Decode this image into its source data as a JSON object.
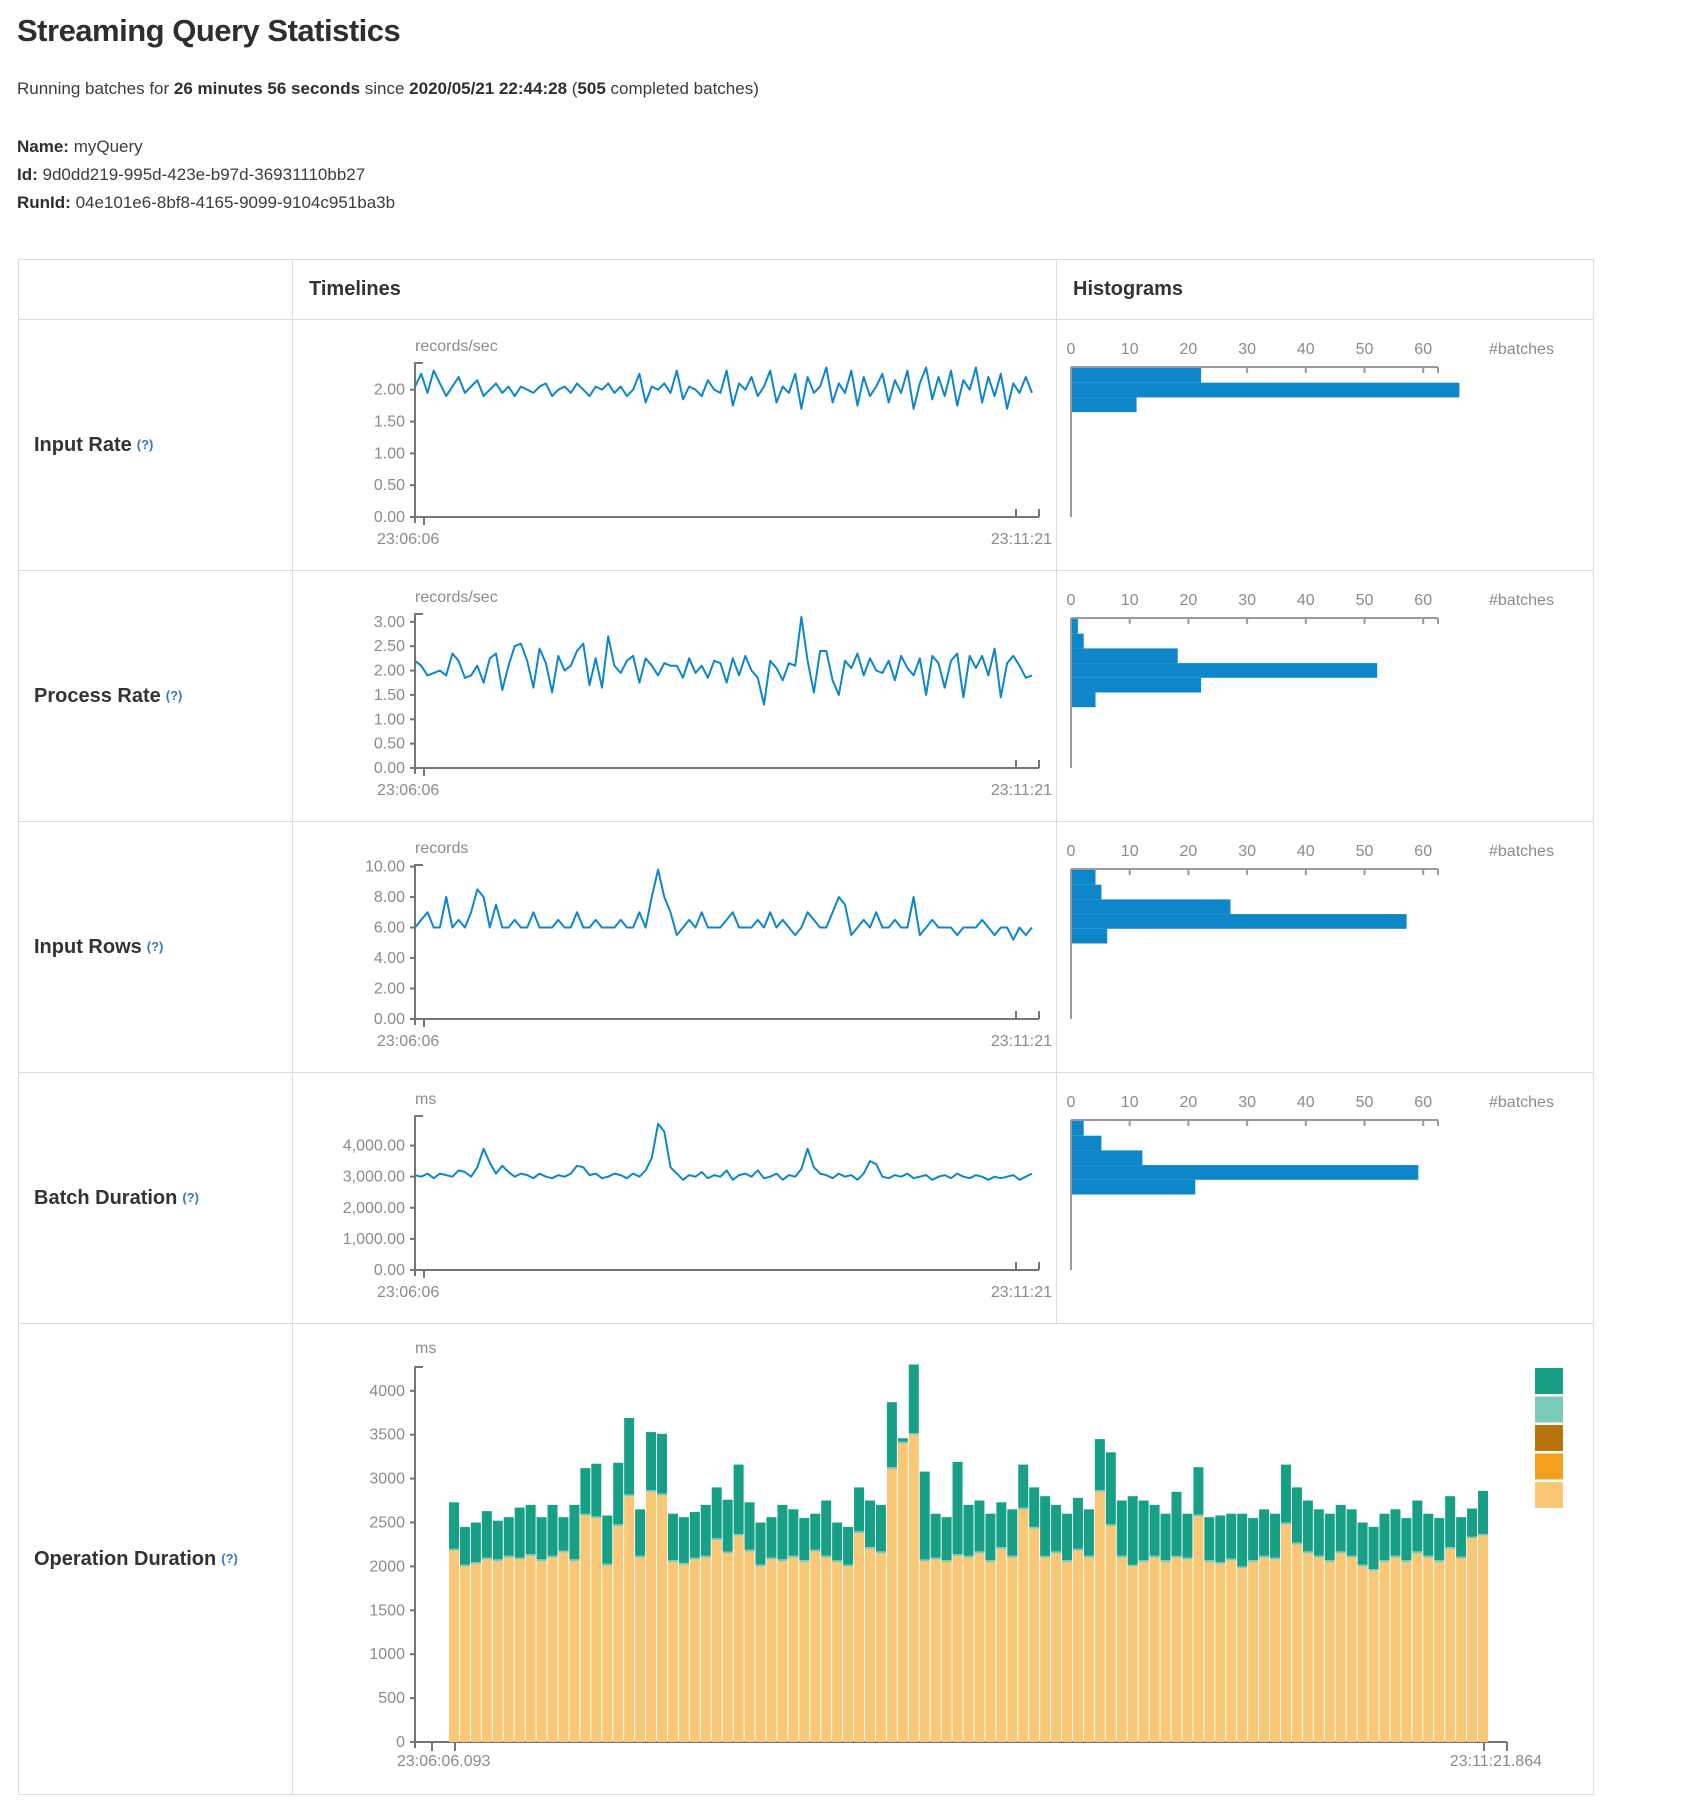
{
  "header": {
    "title": "Streaming Query Statistics",
    "subtitle": {
      "prefix": "Running batches for ",
      "duration": "26 minutes 56 seconds",
      "since": " since ",
      "start_time": "2020/05/21 22:44:28",
      "open_paren": " (",
      "completed_count": "505",
      "suffix": " completed batches)"
    },
    "meta": {
      "name_label": "Name:",
      "name_value": "myQuery",
      "id_label": "Id:",
      "id_value": "9d0dd219-995d-423e-b97d-36931110bb27",
      "runid_label": "RunId:",
      "runid_value": "04e101e6-8bf8-4165-9099-9104c951ba3b"
    }
  },
  "table": {
    "timelines_header": "Timelines",
    "histograms_header": "Histograms"
  },
  "ui": {
    "help_marker": "(?)"
  },
  "colors": {
    "line_blue": "#0d87c9",
    "hist_blue": "#0d87c9",
    "axis_gray": "#757575",
    "hist_axis_gray": "#9a9a9a",
    "stack_green": "#18a086",
    "stack_teal": "#7acbb8",
    "stack_gold": "#b8730e",
    "stack_orange": "#f4a01d",
    "stack_tan": "#f8c877",
    "border": "#dcdcdc"
  },
  "chart_data": [
    {
      "type": "line",
      "label": "Input Rate",
      "unit": "records/sec",
      "x_start": "23:06:06",
      "x_end": "23:11:21",
      "ymax": 2.42,
      "y_ticks": [
        {
          "v": 2.0,
          "label": "2.00"
        },
        {
          "v": 1.5,
          "label": "1.50"
        },
        {
          "v": 1.0,
          "label": "1.00"
        },
        {
          "v": 0.5,
          "label": "0.50"
        },
        {
          "v": 0.0,
          "label": "0.00"
        }
      ],
      "values": [
        2.05,
        2.25,
        1.95,
        2.3,
        2.1,
        1.9,
        2.05,
        2.2,
        1.95,
        2.05,
        2.15,
        1.9,
        2.0,
        2.1,
        1.95,
        2.05,
        1.9,
        2.05,
        2.0,
        1.95,
        2.05,
        2.1,
        1.9,
        2.0,
        2.05,
        1.95,
        2.1,
        2.0,
        1.9,
        2.05,
        2.0,
        2.1,
        1.95,
        2.05,
        1.9,
        2.0,
        2.25,
        1.8,
        2.05,
        2.0,
        2.1,
        1.95,
        2.3,
        1.85,
        2.05,
        2.0,
        1.9,
        2.15,
        2.0,
        1.95,
        2.3,
        1.75,
        2.1,
        2.0,
        2.2,
        1.9,
        2.05,
        2.3,
        1.8,
        2.05,
        1.95,
        2.25,
        1.7,
        2.2,
        1.95,
        2.05,
        2.35,
        1.8,
        2.1,
        1.95,
        2.3,
        1.75,
        2.2,
        1.9,
        2.05,
        2.25,
        1.8,
        2.15,
        1.95,
        2.3,
        1.7,
        2.1,
        2.35,
        1.85,
        2.2,
        1.9,
        2.3,
        1.75,
        2.15,
        2.0,
        2.35,
        1.8,
        2.2,
        1.9,
        2.25,
        1.7,
        2.1,
        1.95,
        2.2,
        1.95
      ],
      "histogram": {
        "xlabel": "#batches",
        "tick_labels": [
          "0",
          "10",
          "20",
          "30",
          "40",
          "50",
          "60"
        ],
        "tick_step": 10,
        "counts": [
          22,
          66,
          11
        ]
      }
    },
    {
      "type": "line",
      "label": "Process Rate",
      "unit": "records/sec",
      "x_start": "23:06:06",
      "x_end": "23:11:21",
      "ymax": 3.16,
      "y_ticks": [
        {
          "v": 3.0,
          "label": "3.00"
        },
        {
          "v": 2.5,
          "label": "2.50"
        },
        {
          "v": 2.0,
          "label": "2.00"
        },
        {
          "v": 1.5,
          "label": "1.50"
        },
        {
          "v": 1.0,
          "label": "1.00"
        },
        {
          "v": 0.5,
          "label": "0.50"
        },
        {
          "v": 0.0,
          "label": "0.00"
        }
      ],
      "values": [
        2.2,
        2.1,
        1.9,
        1.95,
        2.0,
        1.9,
        2.35,
        2.2,
        1.85,
        1.9,
        2.1,
        1.75,
        2.25,
        2.35,
        1.6,
        2.1,
        2.5,
        2.55,
        2.2,
        1.65,
        2.45,
        2.15,
        1.55,
        2.3,
        2.0,
        2.1,
        2.4,
        2.55,
        1.7,
        2.25,
        1.65,
        2.7,
        2.1,
        1.95,
        2.2,
        2.3,
        1.75,
        2.25,
        2.1,
        1.9,
        2.15,
        2.1,
        2.1,
        1.85,
        2.25,
        1.95,
        2.1,
        1.85,
        2.2,
        2.15,
        1.75,
        2.25,
        1.9,
        2.3,
        2.0,
        1.85,
        1.3,
        2.2,
        2.05,
        1.8,
        2.15,
        2.1,
        3.1,
        2.2,
        1.55,
        2.4,
        2.4,
        1.8,
        1.5,
        2.2,
        2.05,
        2.35,
        1.9,
        2.25,
        2.0,
        1.95,
        2.2,
        1.8,
        2.3,
        2.05,
        1.9,
        2.25,
        1.5,
        2.3,
        2.15,
        1.65,
        2.2,
        2.35,
        1.45,
        2.3,
        2.05,
        2.3,
        1.9,
        2.45,
        1.45,
        2.15,
        2.3,
        2.1,
        1.85,
        1.9
      ],
      "histogram": {
        "xlabel": "#batches",
        "tick_labels": [
          "0",
          "10",
          "20",
          "30",
          "40",
          "50",
          "60"
        ],
        "tick_step": 10,
        "counts": [
          1,
          2,
          18,
          52,
          22,
          4
        ]
      }
    },
    {
      "type": "line",
      "label": "Input Rows",
      "unit": "records",
      "x_start": "23:06:06",
      "x_end": "23:11:21",
      "ymax": 10.1,
      "y_ticks": [
        {
          "v": 10,
          "label": "10.00"
        },
        {
          "v": 8,
          "label": "8.00"
        },
        {
          "v": 6,
          "label": "6.00"
        },
        {
          "v": 4,
          "label": "4.00"
        },
        {
          "v": 2,
          "label": "2.00"
        },
        {
          "v": 0,
          "label": "0.00"
        }
      ],
      "values": [
        6,
        6.5,
        7,
        6,
        6,
        8,
        6,
        6.5,
        6,
        7,
        8.5,
        8,
        6,
        7.5,
        6,
        6,
        6.5,
        6,
        6,
        7,
        6,
        6,
        6,
        6.5,
        6,
        6,
        7,
        6,
        6,
        6.5,
        6,
        6,
        6,
        6.5,
        6,
        6,
        7,
        6,
        8,
        9.8,
        8,
        7,
        5.5,
        6,
        6.5,
        6,
        7,
        6,
        6,
        6,
        6.5,
        7,
        6,
        6,
        6,
        6.5,
        6,
        7,
        6,
        6.5,
        6,
        5.5,
        6,
        7,
        6.5,
        6,
        6,
        7,
        8,
        7.5,
        5.5,
        6,
        6.5,
        6,
        7,
        6,
        6,
        6.5,
        6,
        6,
        8,
        5.5,
        6,
        6.5,
        6,
        6,
        6,
        5.5,
        6,
        6,
        6,
        6.5,
        6,
        5.5,
        6,
        6,
        5.2,
        6,
        5.5,
        6
      ],
      "histogram": {
        "xlabel": "#batches",
        "tick_labels": [
          "0",
          "10",
          "20",
          "30",
          "40",
          "50",
          "60"
        ],
        "tick_step": 10,
        "counts": [
          4,
          5,
          27,
          57,
          6
        ]
      }
    },
    {
      "type": "line",
      "label": "Batch Duration",
      "unit": "ms",
      "x_start": "23:06:06",
      "x_end": "23:11:21",
      "ymax": 4950,
      "y_ticks": [
        {
          "v": 4000,
          "label": "4,000.00"
        },
        {
          "v": 3000,
          "label": "3,000.00"
        },
        {
          "v": 2000,
          "label": "2,000.00"
        },
        {
          "v": 1000,
          "label": "1,000.00"
        },
        {
          "v": 0,
          "label": "0.00"
        }
      ],
      "values": [
        3050,
        3000,
        3100,
        2950,
        3100,
        3050,
        3000,
        3200,
        3150,
        3000,
        3300,
        3900,
        3450,
        3100,
        3350,
        3150,
        3000,
        3100,
        3050,
        2950,
        3100,
        3000,
        2950,
        3050,
        3000,
        3100,
        3350,
        3300,
        3050,
        3100,
        2950,
        3000,
        3100,
        3050,
        2950,
        3100,
        3000,
        3200,
        3600,
        4700,
        4450,
        3300,
        3100,
        2900,
        3050,
        3000,
        3150,
        2950,
        3050,
        3000,
        3200,
        2900,
        3050,
        3100,
        3000,
        3200,
        2950,
        3000,
        3100,
        2900,
        3050,
        3000,
        3250,
        3900,
        3300,
        3100,
        3050,
        2950,
        3100,
        3000,
        3050,
        2900,
        3100,
        3500,
        3400,
        3000,
        2950,
        3050,
        3000,
        3100,
        2950,
        3000,
        3050,
        2900,
        3000,
        3050,
        2950,
        3100,
        3000,
        2950,
        3050,
        3000,
        2900,
        3000,
        2950,
        3000,
        3050,
        2900,
        3000,
        3100
      ],
      "histogram": {
        "xlabel": "#batches",
        "tick_labels": [
          "0",
          "10",
          "20",
          "30",
          "40",
          "50",
          "60"
        ],
        "tick_step": 10,
        "counts": [
          2,
          5,
          12,
          59,
          21
        ]
      }
    },
    {
      "type": "stacked_bar",
      "label": "Operation Duration",
      "unit": "ms",
      "x_start": "23:06:06.093",
      "x_end": "23:11:21.864",
      "ymax": 4270,
      "y_ticks": [
        {
          "v": 4000,
          "label": "4000"
        },
        {
          "v": 3500,
          "label": "3500"
        },
        {
          "v": 3000,
          "label": "3000"
        },
        {
          "v": 2500,
          "label": "2500"
        },
        {
          "v": 2000,
          "label": "2000"
        },
        {
          "v": 1500,
          "label": "1500"
        },
        {
          "v": 1000,
          "label": "1000"
        },
        {
          "v": 500,
          "label": "500"
        },
        {
          "v": 0,
          "label": "0"
        }
      ],
      "legend_colors": [
        "#18a086",
        "#7acbb8",
        "#b8730e",
        "#f4a01d",
        "#f8c877"
      ],
      "sliver": 20,
      "base_values": [
        2180,
        2000,
        2030,
        2080,
        2060,
        2100,
        2080,
        2120,
        2060,
        2100,
        2160,
        2060,
        2580,
        2550,
        2010,
        2460,
        2800,
        2100,
        2850,
        2810,
        2050,
        2020,
        2080,
        2100,
        2300,
        2150,
        2350,
        2170,
        2000,
        2080,
        2060,
        2100,
        2050,
        2170,
        2100,
        2050,
        2000,
        2380,
        2200,
        2150,
        3110,
        3400,
        3500,
        2060,
        2080,
        2050,
        2120,
        2100,
        2150,
        2050,
        2200,
        2100,
        2650,
        2430,
        2100,
        2150,
        2050,
        2180,
        2100,
        2850,
        2460,
        2100,
        2000,
        2050,
        2100,
        2050,
        2100,
        2080,
        2570,
        2050,
        2030,
        2070,
        1980,
        2050,
        2100,
        2080,
        2480,
        2250,
        2150,
        2100,
        2050,
        2150,
        2100,
        2000,
        1950,
        2050,
        2100,
        2050,
        2150,
        2100,
        2050,
        2200,
        2090,
        2320,
        2350
      ],
      "total_values": [
        2730,
        2450,
        2500,
        2630,
        2520,
        2560,
        2670,
        2700,
        2560,
        2700,
        2560,
        2700,
        3120,
        3170,
        2580,
        3180,
        3690,
        2650,
        3530,
        3510,
        2600,
        2560,
        2620,
        2700,
        2900,
        2760,
        3160,
        2730,
        2500,
        2560,
        2700,
        2650,
        2550,
        2600,
        2750,
        2500,
        2450,
        2900,
        2750,
        2700,
        3870,
        3460,
        4300,
        3080,
        2600,
        2560,
        3190,
        2700,
        2750,
        2600,
        2730,
        2650,
        3160,
        2900,
        2800,
        2700,
        2600,
        2780,
        2650,
        3450,
        3300,
        2750,
        2800,
        2750,
        2700,
        2600,
        2850,
        2600,
        3130,
        2560,
        2580,
        2600,
        2600,
        2550,
        2650,
        2600,
        3160,
        2900,
        2750,
        2650,
        2600,
        2700,
        2650,
        2500,
        2450,
        2600,
        2650,
        2550,
        2750,
        2600,
        2550,
        2800,
        2560,
        2660,
        2860
      ]
    }
  ]
}
